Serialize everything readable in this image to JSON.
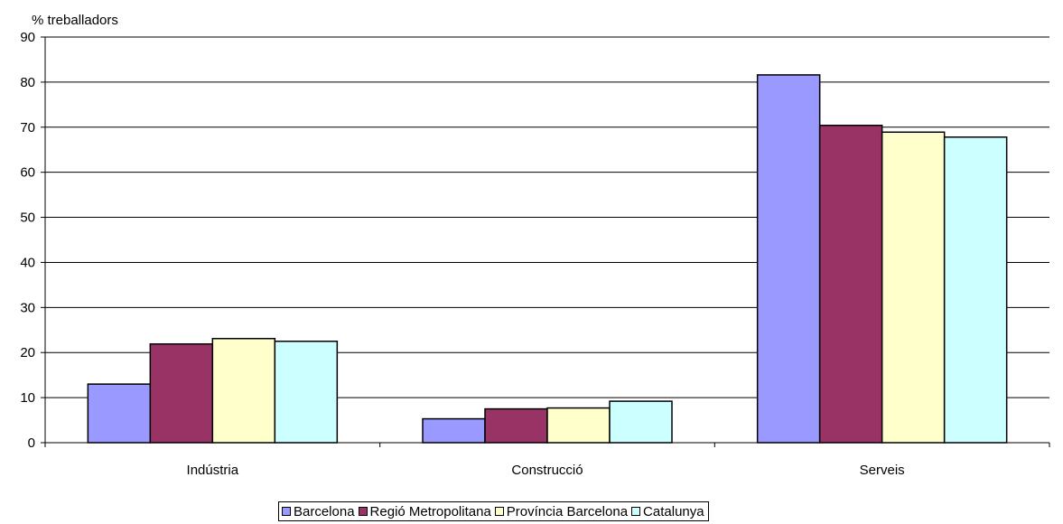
{
  "chart_data": {
    "type": "bar",
    "ylabel": "% treballadors",
    "xlabel": "",
    "title": "",
    "ylim": [
      0,
      90
    ],
    "ytick_step": 10,
    "categories": [
      "Indústria",
      "Construcció",
      "Serveis"
    ],
    "series": [
      {
        "name": "Barcelona",
        "color": "#9999ff",
        "values": [
          13.0,
          5.3,
          81.6
        ]
      },
      {
        "name": "Regió Metropolitana",
        "color": "#993366",
        "values": [
          21.9,
          7.5,
          70.4
        ]
      },
      {
        "name": "Província Barcelona",
        "color": "#ffffcc",
        "values": [
          23.1,
          7.7,
          68.9
        ]
      },
      {
        "name": "Catalunya",
        "color": "#ccffff",
        "values": [
          22.5,
          9.2,
          67.8
        ]
      }
    ],
    "grid": true,
    "legend_position": "bottom"
  }
}
